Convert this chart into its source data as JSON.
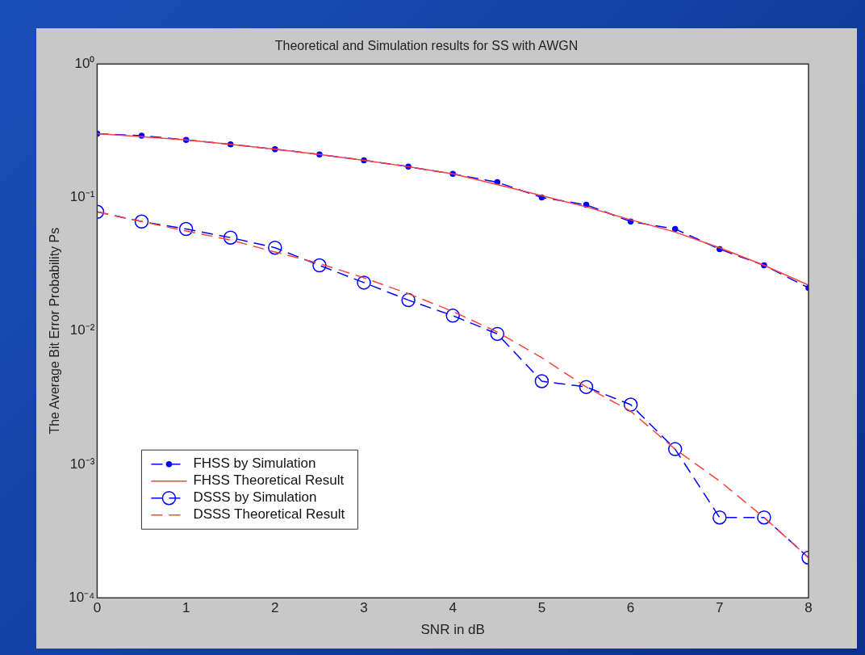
{
  "chart_data": {
    "type": "line",
    "title": "Theoretical and Simulation results for SS with AWGN",
    "xlabel": "SNR in dB",
    "ylabel": "The Average Bit Error Probability Ps",
    "x": [
      0,
      0.5,
      1,
      1.5,
      2,
      2.5,
      3,
      3.5,
      4,
      4.5,
      5,
      5.5,
      6,
      6.5,
      7,
      7.5,
      8
    ],
    "series": [
      {
        "name": "FHSS by Simulation",
        "color": "#0000ff",
        "marker": "circle",
        "line_style": "dashed",
        "values": [
          0.3,
          0.29,
          0.27,
          0.25,
          0.23,
          0.21,
          0.19,
          0.17,
          0.15,
          0.13,
          0.1,
          0.088,
          0.066,
          0.058,
          0.041,
          0.031,
          0.021
        ]
      },
      {
        "name": "FHSS Theoretical Result",
        "color": "#ff4040",
        "marker": "none",
        "line_style": "solid",
        "values": [
          0.3,
          0.285,
          0.27,
          0.25,
          0.23,
          0.21,
          0.19,
          0.17,
          0.15,
          0.125,
          0.103,
          0.085,
          0.068,
          0.055,
          0.042,
          0.031,
          0.022
        ]
      },
      {
        "name": "DSSS by Simulation",
        "color": "#0000ff",
        "marker": "circle",
        "line_style": "dashed",
        "values": [
          0.078,
          0.066,
          0.058,
          0.05,
          0.042,
          0.031,
          0.023,
          0.017,
          0.013,
          0.0095,
          0.0042,
          0.0038,
          0.0028,
          0.0013,
          0.0004,
          0.0004,
          0.0002
        ]
      },
      {
        "name": "DSSS Theoretical Result",
        "color": "#ff4040",
        "marker": "none",
        "line_style": "dashed",
        "values": [
          0.078,
          0.066,
          0.056,
          0.048,
          0.039,
          0.032,
          0.025,
          0.019,
          0.014,
          0.0098,
          0.0063,
          0.0038,
          0.0025,
          0.0013,
          0.00075,
          0.0004,
          0.0002
        ]
      }
    ],
    "log": "y",
    "xlim": [
      0,
      8
    ],
    "xticks": [
      0,
      1,
      2,
      3,
      4,
      5,
      6,
      7,
      8
    ],
    "ylim": [
      0.0001,
      1
    ],
    "yticks": [
      {
        "value": 0.0001,
        "label": "10⁻⁴"
      },
      {
        "value": 0.001,
        "label": "10⁻³"
      },
      {
        "value": 0.01,
        "label": "10⁻²"
      },
      {
        "value": 0.1,
        "label": "10⁻¹"
      },
      {
        "value": 1,
        "label": "10⁰"
      }
    ],
    "grid": false,
    "legend": "bottom left"
  }
}
